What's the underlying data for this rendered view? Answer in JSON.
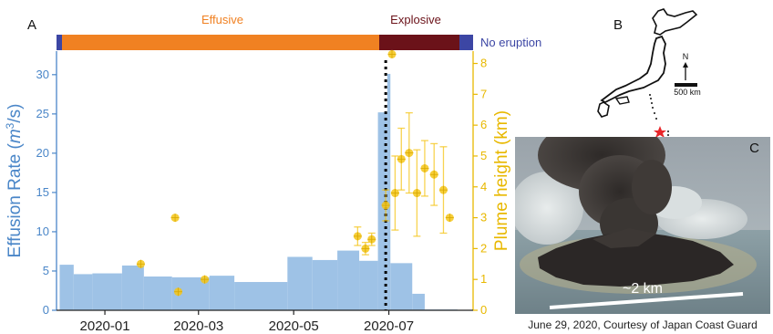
{
  "panels": {
    "a_label": "A",
    "b_label": "B",
    "c_label": "C"
  },
  "phase_bar": {
    "effusive_label": "Effusive",
    "explosive_label": "Explosive",
    "no_eruption_label": "No eruption",
    "colors": {
      "effusive": "#f08122",
      "explosive": "#6b1219",
      "no_eruption": "#3c46a4"
    }
  },
  "chart_data": {
    "type": "bar",
    "title": "",
    "xlabel": "",
    "ylabel": "Effusion Rate (m³/s)",
    "ylabel_parts": [
      "Effusion Rate (",
      "m",
      "3",
      "/s)"
    ],
    "y2label": "Plume height (km)",
    "x_tick_labels": [
      "2020-01",
      "2020-03",
      "2020-05",
      "2020-07"
    ],
    "x_ticks": [
      "2020-01-01",
      "2020-03-01",
      "2020-05-01",
      "2020-07-01"
    ],
    "x_range": [
      "2019-12-01",
      "2020-08-24"
    ],
    "ylim": [
      0,
      33
    ],
    "y_ticks": [
      0,
      5,
      10,
      15,
      20,
      25,
      30
    ],
    "y2lim": [
      0,
      8.4
    ],
    "y2_ticks": [
      0,
      1,
      2,
      3,
      4,
      5,
      6,
      7,
      8
    ],
    "effusion_rate_bars": [
      {
        "start": "2019-12-03",
        "end": "2019-12-12",
        "value": 5.8
      },
      {
        "start": "2019-12-12",
        "end": "2019-12-24",
        "value": 4.6
      },
      {
        "start": "2019-12-24",
        "end": "2020-01-12",
        "value": 4.7
      },
      {
        "start": "2020-01-12",
        "end": "2020-01-26",
        "value": 5.7
      },
      {
        "start": "2020-01-26",
        "end": "2020-02-13",
        "value": 4.3
      },
      {
        "start": "2020-02-13",
        "end": "2020-03-08",
        "value": 4.2
      },
      {
        "start": "2020-03-08",
        "end": "2020-03-24",
        "value": 4.4
      },
      {
        "start": "2020-03-24",
        "end": "2020-04-27",
        "value": 3.6
      },
      {
        "start": "2020-04-27",
        "end": "2020-05-13",
        "value": 6.8
      },
      {
        "start": "2020-05-13",
        "end": "2020-05-29",
        "value": 6.4
      },
      {
        "start": "2020-05-29",
        "end": "2020-06-12",
        "value": 7.6
      },
      {
        "start": "2020-06-12",
        "end": "2020-06-24",
        "value": 6.3
      },
      {
        "start": "2020-06-24",
        "end": "2020-06-30",
        "value": 25.2
      },
      {
        "start": "2020-06-30",
        "end": "2020-07-02",
        "value": 30.1
      },
      {
        "start": "2020-07-02",
        "end": "2020-07-16",
        "value": 6.0
      },
      {
        "start": "2020-07-16",
        "end": "2020-07-24",
        "value": 2.1
      },
      {
        "start": "2020-07-24",
        "end": "2020-08-14",
        "value": 0.1
      }
    ],
    "plume_height_points": [
      {
        "date": "2020-01-24",
        "height": 1.5,
        "err": 0
      },
      {
        "date": "2020-02-15",
        "height": 3.0,
        "err": 0
      },
      {
        "date": "2020-02-17",
        "height": 0.6,
        "err": 0
      },
      {
        "date": "2020-03-05",
        "height": 1.0,
        "err": 0
      },
      {
        "date": "2020-06-11",
        "height": 2.4,
        "err": 0.3
      },
      {
        "date": "2020-06-16",
        "height": 2.0,
        "err": 0.2
      },
      {
        "date": "2020-06-20",
        "height": 2.3,
        "err": 0.2
      },
      {
        "date": "2020-06-29",
        "height": 3.4,
        "err": 0.5
      },
      {
        "date": "2020-07-03",
        "height": 8.3,
        "err": 0
      },
      {
        "date": "2020-07-05",
        "height": 3.8,
        "err": 1.2
      },
      {
        "date": "2020-07-09",
        "height": 4.9,
        "err": 1.0
      },
      {
        "date": "2020-07-14",
        "height": 5.1,
        "err": 1.3
      },
      {
        "date": "2020-07-19",
        "height": 3.8,
        "err": 1.4
      },
      {
        "date": "2020-07-24",
        "height": 4.6,
        "err": 0.9
      },
      {
        "date": "2020-07-30",
        "height": 4.4,
        "err": 1.0
      },
      {
        "date": "2020-08-05",
        "height": 3.9,
        "err": 1.4
      },
      {
        "date": "2020-08-09",
        "height": 3.0,
        "err": 0
      }
    ],
    "dotted_line_date": "2020-06-29",
    "grid": false,
    "colors": {
      "bars": "#9ec2e6",
      "plume": "#f5c518",
      "left_axis": "#4a86c8",
      "right_axis": "#e8b800"
    }
  },
  "map": {
    "north_label": "N",
    "scale_label": "500 km",
    "star_color": "#e8262a",
    "icon": "japan-outline-map"
  },
  "photo": {
    "scale_label": "~2 km",
    "caption": "June 29, 2020, Courtesy of Japan Coast Guard"
  }
}
